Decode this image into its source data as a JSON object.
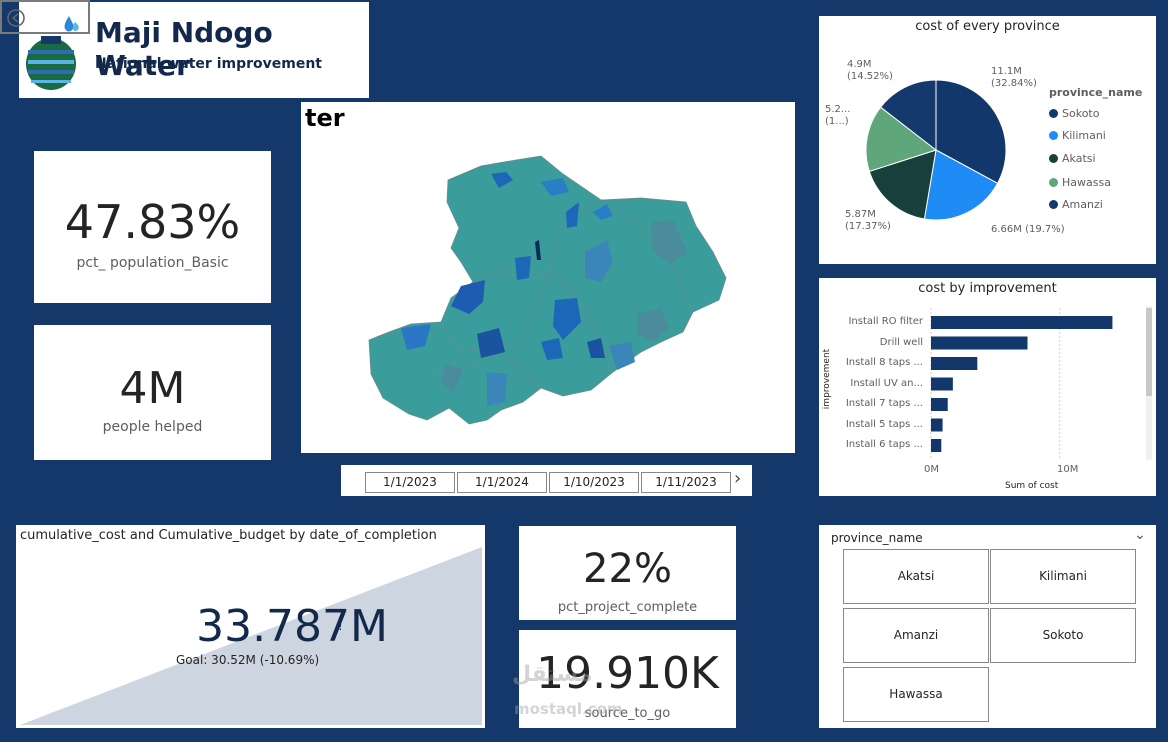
{
  "brand": {
    "title": "Maji Ndogo Water",
    "subtitle": "National water improvement"
  },
  "kpis": {
    "pct_population_basic": {
      "value": "47.83%",
      "label": "pct_ population_Basic"
    },
    "people_helped": {
      "value": "4M",
      "label": "people helped"
    },
    "pct_project_complete": {
      "value": "22%",
      "label": "pct_project_complete"
    },
    "source_to_go": {
      "value": "19.910K",
      "label": "source_to_go"
    }
  },
  "map": {
    "title": "ter"
  },
  "date_filter": {
    "dates": [
      "1/1/2023",
      "1/1/2024",
      "1/10/2023",
      "1/11/2023"
    ],
    "next_icon": "chevron-right-icon"
  },
  "cost_by_province": {
    "title": "cost of every province",
    "legend_title": "province_name",
    "labels": {
      "sokoto": "11.1M\n(32.84%)",
      "kilimani": "6.66M (19.7%)",
      "akatsi": "5.87M\n(17.37%)",
      "hawassa": "5.2...\n(1...)",
      "amanzi": "4.9M\n(14.52%)"
    },
    "legend": [
      "Sokoto",
      "Kilimani",
      "Akatsi",
      "Hawassa",
      "Amanzi"
    ]
  },
  "cost_by_improvement": {
    "title": "cost by improvement",
    "ylabel": "improvement",
    "xlabel": "Sum of cost",
    "ticks": [
      "0M",
      "10M"
    ]
  },
  "cumulative": {
    "title": "cumulative_cost and Cumulative_budget by date_of_completion",
    "value": "33.787M",
    "goal": "Goal: 30.52M (-10.69%)",
    "warning": "!"
  },
  "province_slicer": {
    "title": "province_name",
    "options": [
      "Akatsi",
      "Kilimani",
      "Amanzi",
      "Sokoto",
      "Hawassa"
    ]
  },
  "watermark": {
    "line1": "مستقل",
    "line2": "mostaql.com"
  },
  "chart_data": [
    {
      "type": "pie",
      "title": "cost of every province",
      "categories": [
        "Sokoto",
        "Kilimani",
        "Akatsi",
        "Hawassa",
        "Amanzi"
      ],
      "values": [
        11.1,
        6.66,
        5.87,
        5.2,
        4.9
      ],
      "percents": [
        32.84,
        19.7,
        17.37,
        15.57,
        14.52
      ],
      "colors": [
        "#12376b",
        "#1f8bf5",
        "#173f3b",
        "#5fa67a",
        "#13396d"
      ],
      "legend": "right"
    },
    {
      "type": "bar",
      "title": "cost by improvement",
      "orientation": "horizontal",
      "categories": [
        "Install RO filter",
        "Drill well",
        "Install 8 taps ...",
        "Install UV an...",
        "Install 7 taps ...",
        "Install 5 taps ...",
        "Install 6 taps ..."
      ],
      "values": [
        14.1,
        7.5,
        3.6,
        1.7,
        1.3,
        0.9,
        0.8
      ],
      "xlabel": "Sum of cost",
      "ylabel": "improvement",
      "xlim": [
        0,
        15
      ],
      "grid": true,
      "color": "#12376b"
    },
    {
      "type": "area",
      "title": "cumulative_cost and Cumulative_budget by date_of_completion",
      "series": [
        {
          "values": [
            0,
            33.787
          ]
        }
      ],
      "color": "#cdd5e0"
    }
  ]
}
